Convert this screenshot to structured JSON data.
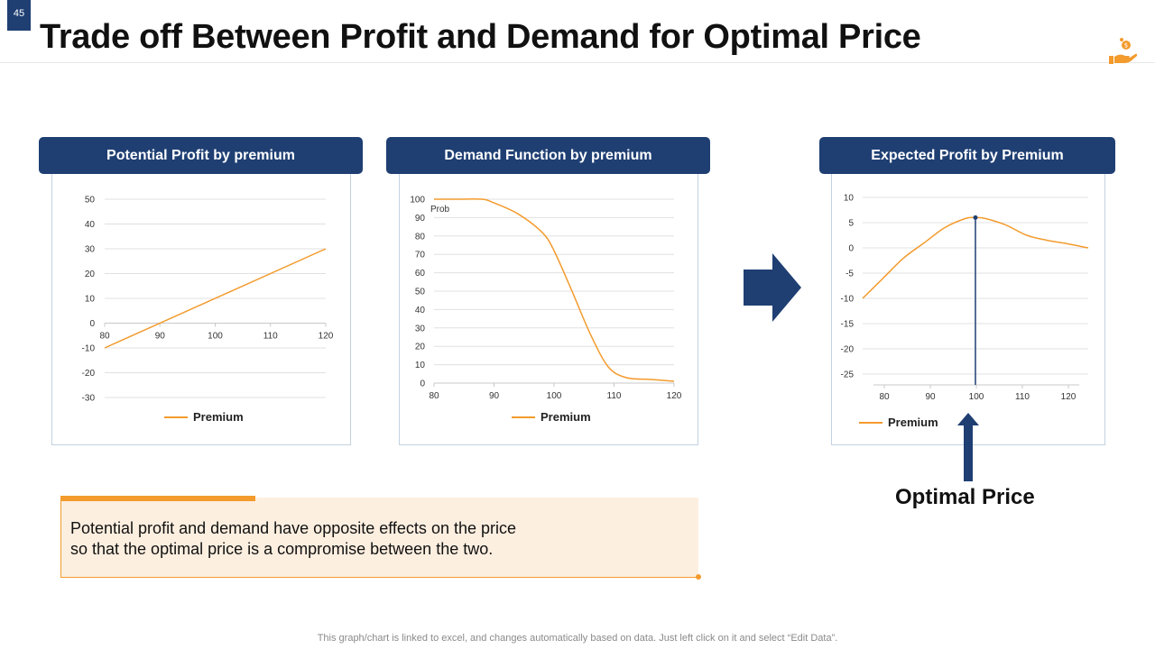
{
  "slide": {
    "number": "45",
    "title": "Trade off Between Profit and Demand for Optimal Price"
  },
  "colors": {
    "navy": "#1f3f73",
    "orange": "#f39b2d",
    "grid": "#e0e0e0",
    "axis": "#c8c8c8",
    "note_bg": "#fdefe0"
  },
  "icons": {
    "logo": "hand-coin-icon",
    "right_arrow": "right-arrow-icon",
    "up_arrow": "up-arrow-icon"
  },
  "panels": [
    {
      "header": "Potential Profit by premium",
      "legend": "Premium"
    },
    {
      "header": "Demand Function by premium",
      "legend": "Premium"
    },
    {
      "header": "Expected Profit by Premium",
      "legend": "Premium"
    }
  ],
  "optimal_label": "Optimal Price",
  "note": {
    "line1": "Potential profit and demand have opposite effects on the price",
    "line2": "so that the optimal price is a compromise between the two."
  },
  "footnote": "This graph/chart is linked to excel, and changes automatically based on data. Just left click on it and select “Edit Data”.",
  "chart_data": [
    {
      "type": "line",
      "title": "Potential Profit by premium",
      "xlabel": "",
      "ylabel": "",
      "x_ticks": [
        80,
        90,
        100,
        110,
        120
      ],
      "y_ticks": [
        50,
        40,
        30,
        20,
        10,
        0,
        -10,
        -20,
        -30
      ],
      "xlim": [
        80,
        120
      ],
      "ylim": [
        -30,
        50
      ],
      "grid": true,
      "legend_position": "bottom",
      "series": [
        {
          "name": "Premium",
          "x": [
            80,
            120
          ],
          "y": [
            -10,
            30
          ]
        }
      ]
    },
    {
      "type": "line",
      "title": "Demand Function by premium",
      "xlabel": "",
      "ylabel": "Prob",
      "x_ticks": [
        80,
        90,
        100,
        110,
        120
      ],
      "y_ticks": [
        100,
        90,
        80,
        70,
        60,
        50,
        40,
        30,
        20,
        10,
        0
      ],
      "xlim": [
        80,
        120
      ],
      "ylim": [
        0,
        100
      ],
      "grid": true,
      "legend_position": "bottom",
      "series": [
        {
          "name": "Premium",
          "x": [
            80,
            84,
            88,
            90,
            94,
            98,
            100,
            103,
            106,
            109,
            112,
            116,
            120
          ],
          "y": [
            100,
            100,
            100,
            98,
            92,
            82,
            72,
            50,
            27,
            9,
            3,
            2,
            1
          ]
        }
      ]
    },
    {
      "type": "line",
      "title": "Expected Profit by Premium",
      "xlabel": "",
      "ylabel": "",
      "x_ticks": [
        80,
        90,
        100,
        110,
        120
      ],
      "y_ticks": [
        10,
        5,
        0,
        -5,
        -10,
        -15,
        -20,
        -25
      ],
      "xlim": [
        78,
        122
      ],
      "ylim": [
        -25,
        10
      ],
      "grid": true,
      "legend_position": "bottom",
      "optimal_x": 100,
      "series": [
        {
          "name": "Premium",
          "x": [
            78,
            82,
            86,
            90,
            94,
            98,
            100,
            102,
            106,
            110,
            114,
            118,
            122
          ],
          "y": [
            -10,
            -6,
            -2,
            1,
            4,
            5.8,
            6,
            5.8,
            4.5,
            2.5,
            1.5,
            0.8,
            0
          ]
        }
      ]
    }
  ]
}
